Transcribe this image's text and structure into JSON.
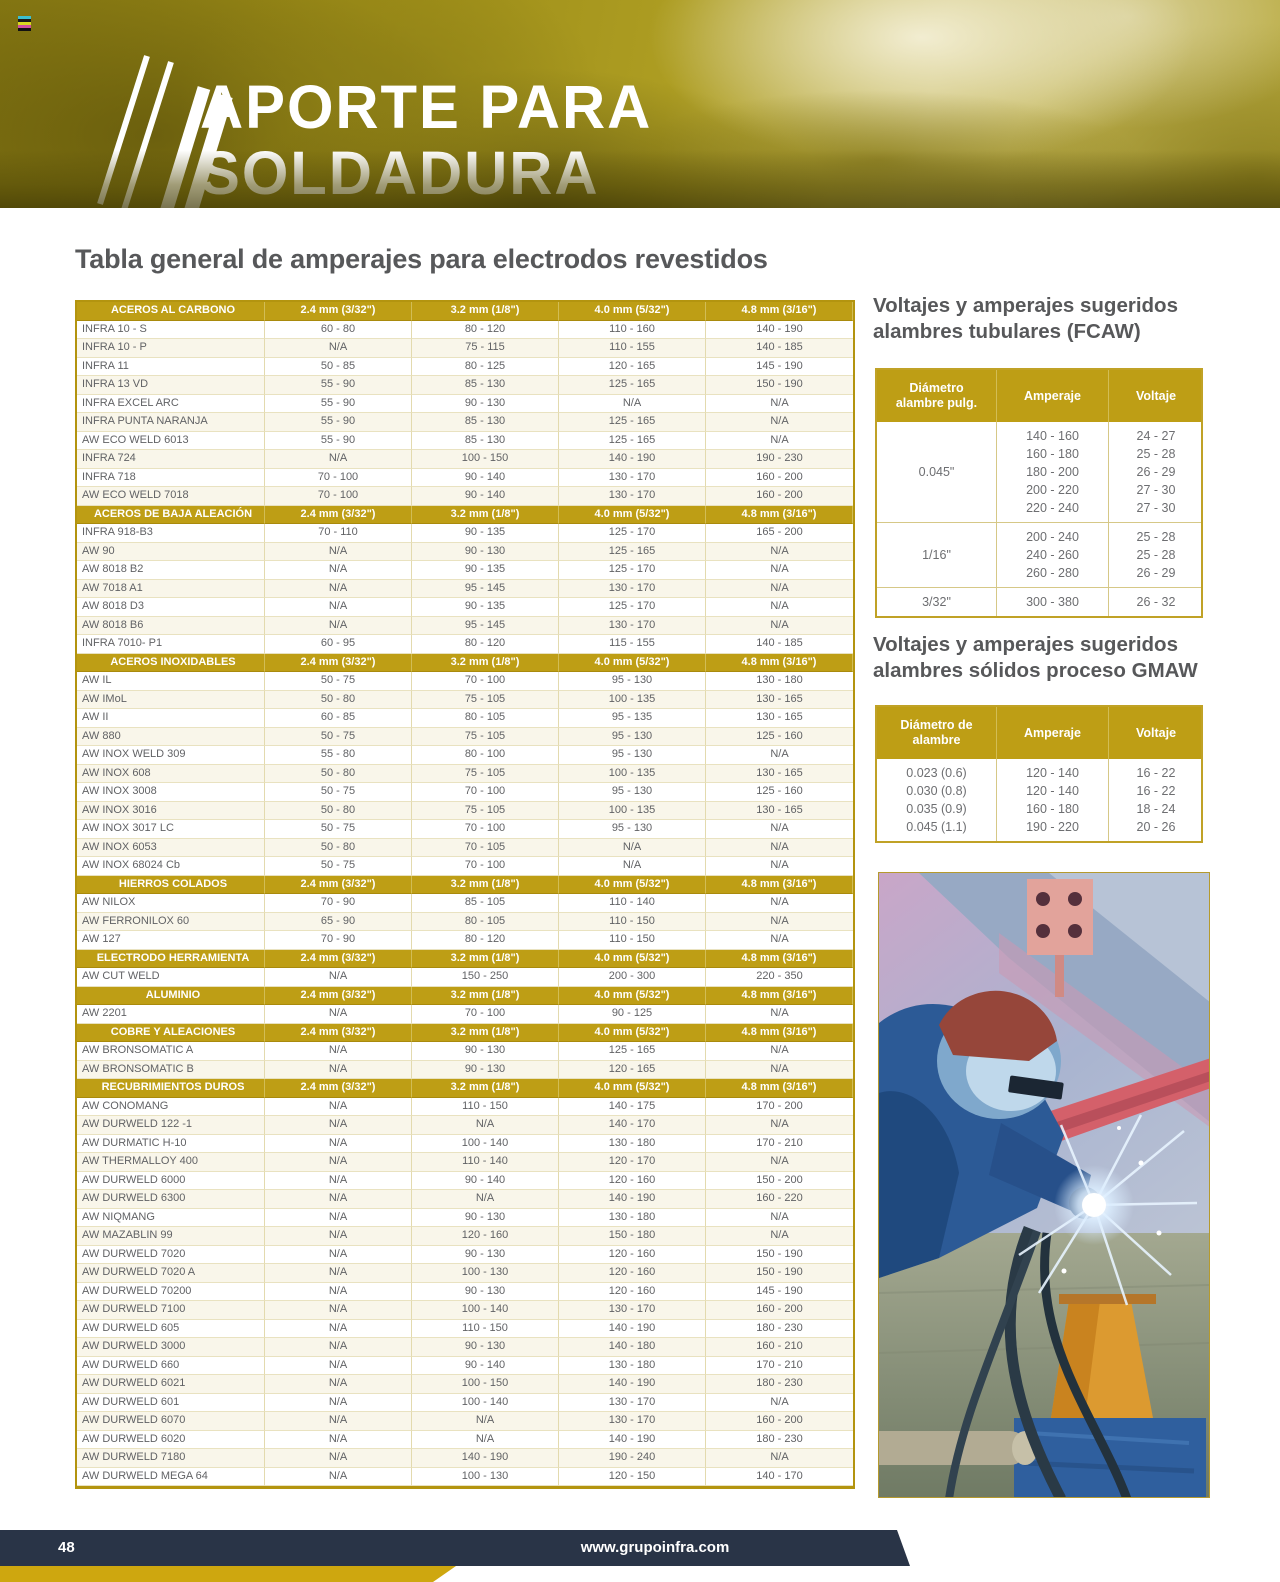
{
  "hero": {
    "title_line1": "APORTE PARA",
    "title_line2": "SOLDADURA"
  },
  "icons": {
    "registration_mark": "registration-mark-icon",
    "welding_rods": "welding-rods-icon"
  },
  "colors": {
    "gold_header": "#BE9E15",
    "navy_footer": "#293447",
    "yellow_strip": "#CEA70F",
    "title_gray": "#57585a",
    "cell_gray": "#616265"
  },
  "main_table": {
    "title": "Tabla general de amperajes para electrodos revestidos",
    "column_headers": [
      "2.4 mm (3/32\")",
      "3.2 mm (1/8\")",
      "4.0 mm (5/32\")",
      "4.8 mm (3/16\")"
    ],
    "sections": [
      {
        "name": "ACEROS AL CARBONO",
        "rows": [
          [
            "INFRA 10 - S",
            "60 - 80",
            "80 - 120",
            "110 - 160",
            "140 - 190"
          ],
          [
            "INFRA 10 - P",
            "N/A",
            "75 - 115",
            "110 - 155",
            "140 - 185"
          ],
          [
            "INFRA 11",
            "50 - 85",
            "80 - 125",
            "120 - 165",
            "145 - 190"
          ],
          [
            "INFRA 13 VD",
            "55 - 90",
            "85 - 130",
            "125 - 165",
            "150 - 190"
          ],
          [
            "INFRA EXCEL ARC",
            "55 - 90",
            "90 - 130",
            "N/A",
            "N/A"
          ],
          [
            "INFRA PUNTA NARANJA",
            "55 - 90",
            "85 - 130",
            "125 - 165",
            "N/A"
          ],
          [
            "AW ECO WELD 6013",
            "55 - 90",
            "85 - 130",
            "125 - 165",
            "N/A"
          ],
          [
            "INFRA 724",
            "N/A",
            "100 - 150",
            "140 - 190",
            "190 - 230"
          ],
          [
            "INFRA 718",
            "70 - 100",
            "90 - 140",
            "130 - 170",
            "160 - 200"
          ],
          [
            "AW ECO WELD 7018",
            "70 - 100",
            "90 - 140",
            "130 - 170",
            "160 - 200"
          ]
        ]
      },
      {
        "name": "ACEROS DE BAJA ALEACIÓN",
        "rows": [
          [
            "INFRA 918-B3",
            "70 - 110",
            "90 - 135",
            "125 - 170",
            "165 - 200"
          ],
          [
            "AW 90",
            "N/A",
            "90 - 130",
            "125 - 165",
            "N/A"
          ],
          [
            "AW 8018 B2",
            "N/A",
            "90 - 135",
            "125 - 170",
            "N/A"
          ],
          [
            "AW 7018 A1",
            "N/A",
            "95 - 145",
            "130 - 170",
            "N/A"
          ],
          [
            "AW 8018 D3",
            "N/A",
            "90 - 135",
            "125 - 170",
            "N/A"
          ],
          [
            "AW 8018 B6",
            "N/A",
            "95 - 145",
            "130 - 170",
            "N/A"
          ],
          [
            "INFRA 7010- P1",
            "60 - 95",
            "80 - 120",
            "115 - 155",
            "140 - 185"
          ]
        ]
      },
      {
        "name": "ACEROS INOXIDABLES",
        "rows": [
          [
            "AW IL",
            "50 - 75",
            "70 - 100",
            "95 - 130",
            "130 - 180"
          ],
          [
            "AW IMoL",
            "50 - 80",
            "75 - 105",
            "100 - 135",
            "130 - 165"
          ],
          [
            "AW II",
            "60 - 85",
            "80 - 105",
            "95 - 135",
            "130 - 165"
          ],
          [
            "AW 880",
            "50 - 75",
            "75 - 105",
            "95 - 130",
            "125 - 160"
          ],
          [
            "AW INOX WELD 309",
            "55 - 80",
            "80 - 100",
            "95 - 130",
            "N/A"
          ],
          [
            "AW INOX 608",
            "50 - 80",
            "75 - 105",
            "100 - 135",
            "130 - 165"
          ],
          [
            "AW INOX 3008",
            "50 - 75",
            "70 - 100",
            "95 - 130",
            "125 - 160"
          ],
          [
            "AW INOX 3016",
            "50 - 80",
            "75 - 105",
            "100 - 135",
            "130 - 165"
          ],
          [
            "AW INOX 3017 LC",
            "50 - 75",
            "70 - 100",
            "95 - 130",
            "N/A"
          ],
          [
            "AW INOX 6053",
            "50 - 80",
            "70 - 105",
            "N/A",
            "N/A"
          ],
          [
            "AW INOX 68024 Cb",
            "50 - 75",
            "70 - 100",
            "N/A",
            "N/A"
          ]
        ]
      },
      {
        "name": "HIERROS COLADOS",
        "rows": [
          [
            "AW NILOX",
            "70 - 90",
            "85 - 105",
            "110 - 140",
            "N/A"
          ],
          [
            "AW FERRONILOX 60",
            "65 - 90",
            "80 - 105",
            "110 - 150",
            "N/A"
          ],
          [
            "AW 127",
            "70 - 90",
            "80 - 120",
            "110 - 150",
            "N/A"
          ]
        ]
      },
      {
        "name": "ELECTRODO HERRAMIENTA",
        "rows": [
          [
            "AW CUT WELD",
            "N/A",
            "150 - 250",
            "200 - 300",
            "220 - 350"
          ]
        ]
      },
      {
        "name": "ALUMINIO",
        "rows": [
          [
            "AW 2201",
            "N/A",
            "70 - 100",
            "90 - 125",
            "N/A"
          ]
        ]
      },
      {
        "name": "COBRE Y ALEACIONES",
        "rows": [
          [
            "AW BRONSOMATIC A",
            "N/A",
            "90 - 130",
            "125 - 165",
            "N/A"
          ],
          [
            "AW BRONSOMATIC B",
            "N/A",
            "90 - 130",
            "120 - 165",
            "N/A"
          ]
        ]
      },
      {
        "name": "RECUBRIMIENTOS DUROS",
        "rows": [
          [
            "AW CONOMANG",
            "N/A",
            "110 - 150",
            "140 - 175",
            "170 - 200"
          ],
          [
            "AW DURWELD 122 -1",
            "N/A",
            "N/A",
            "140 - 170",
            "N/A"
          ],
          [
            "AW DURMATIC H-10",
            "N/A",
            "100 - 140",
            "130 - 180",
            "170 - 210"
          ],
          [
            "AW THERMALLOY 400",
            "N/A",
            "110 - 140",
            "120 - 170",
            "N/A"
          ],
          [
            "AW DURWELD 6000",
            "N/A",
            "90 - 140",
            "120 - 160",
            "150 - 200"
          ],
          [
            "AW DURWELD 6300",
            "N/A",
            "N/A",
            "140 - 190",
            "160 - 220"
          ],
          [
            "AW NIQMANG",
            "N/A",
            "90 - 130",
            "130 - 180",
            "N/A"
          ],
          [
            "AW MAZABLIN 99",
            "N/A",
            "120 - 160",
            "150 - 180",
            "N/A"
          ],
          [
            "AW DURWELD 7020",
            "N/A",
            "90 - 130",
            "120 - 160",
            "150 - 190"
          ],
          [
            "AW DURWELD 7020 A",
            "N/A",
            "100 - 130",
            "120 - 160",
            "150 - 190"
          ],
          [
            "AW DURWELD 70200",
            "N/A",
            "90 - 130",
            "120 - 160",
            "145 - 190"
          ],
          [
            "AW DURWELD 7100",
            "N/A",
            "100 - 140",
            "130 - 170",
            "160 - 200"
          ],
          [
            "AW DURWELD 605",
            "N/A",
            "110 - 150",
            "140 - 190",
            "180 - 230"
          ],
          [
            "AW DURWELD 3000",
            "N/A",
            "90 - 130",
            "140 - 180",
            "160 - 210"
          ],
          [
            "AW DURWELD 660",
            "N/A",
            "90 - 140",
            "130 - 180",
            "170 - 210"
          ],
          [
            "AW DURWELD 6021",
            "N/A",
            "100 - 150",
            "140 - 190",
            "180 - 230"
          ],
          [
            "AW DURWELD 601",
            "N/A",
            "100 - 140",
            "130 - 170",
            "N/A"
          ],
          [
            "AW DURWELD 6070",
            "N/A",
            "N/A",
            "130 - 170",
            "160 - 200"
          ],
          [
            "AW DURWELD 6020",
            "N/A",
            "N/A",
            "140 - 190",
            "180 - 230"
          ],
          [
            "AW DURWELD 7180",
            "N/A",
            "140 - 190",
            "190 - 240",
            "N/A"
          ],
          [
            "AW DURWELD MEGA 64",
            "N/A",
            "100 - 130",
            "120 - 150",
            "140 - 170"
          ]
        ]
      }
    ]
  },
  "fcaw": {
    "title_line1": "Voltajes y amperajes sugeridos",
    "title_line2": "alambres tubulares (FCAW)",
    "headers": [
      "Diámetro alambre pulg.",
      "Amperaje",
      "Voltaje"
    ],
    "groups": [
      {
        "diameter": "0.045\"",
        "amperaje": [
          "140 - 160",
          "160 - 180",
          "180 - 200",
          "200 - 220",
          "220 - 240"
        ],
        "voltaje": [
          "24 - 27",
          "25 - 28",
          "26 - 29",
          "27 - 30",
          "27 - 30"
        ]
      },
      {
        "diameter": "1/16\"",
        "amperaje": [
          "200 - 240",
          "240 - 260",
          "260 - 280"
        ],
        "voltaje": [
          "25 - 28",
          "25 - 28",
          "26 - 29"
        ]
      },
      {
        "diameter": "3/32\"",
        "amperaje": [
          "300 - 380"
        ],
        "voltaje": [
          "26 - 32"
        ]
      }
    ]
  },
  "gmaw": {
    "title_line1": "Voltajes y amperajes sugeridos",
    "title_line2": "alambres sólidos proceso GMAW",
    "headers": [
      "Diámetro de alambre",
      "Amperaje",
      "Voltaje"
    ],
    "groups": [
      {
        "diameter": "",
        "diameters": [
          "0.023 (0.6)",
          "0.030 (0.8)",
          "0.035 (0.9)",
          "0.045 (1.1)"
        ],
        "amperaje": [
          "120 - 140",
          "120 - 140",
          "160 - 180",
          "190 - 220"
        ],
        "voltaje": [
          "16 - 22",
          "16 - 22",
          "18 - 24",
          "20 - 26"
        ]
      }
    ]
  },
  "footer": {
    "page_number": "48",
    "website": "www.grupoinfra.com"
  }
}
